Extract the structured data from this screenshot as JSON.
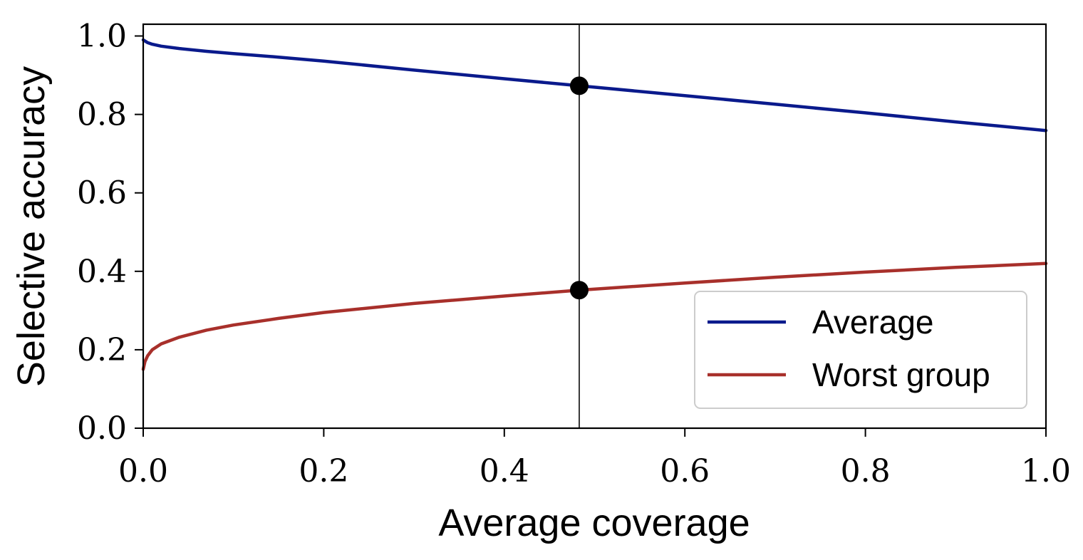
{
  "chart_data": {
    "type": "line",
    "title": "",
    "xlabel": "Average coverage",
    "ylabel": "Selective accuracy",
    "xlim": [
      0.0,
      1.0
    ],
    "ylim": [
      0.0,
      1.03
    ],
    "xticks": [
      0.0,
      0.2,
      0.4,
      0.6,
      0.8,
      1.0
    ],
    "xtick_labels": [
      "0.0",
      "0.2",
      "0.4",
      "0.6",
      "0.8",
      "1.0"
    ],
    "yticks": [
      0.0,
      0.2,
      0.4,
      0.6,
      0.8,
      1.0
    ],
    "ytick_labels": [
      "0.0",
      "0.2",
      "0.4",
      "0.6",
      "0.8",
      "1.0"
    ],
    "grid": false,
    "legend_position": "bottom-right",
    "series": [
      {
        "name": "Average",
        "color": "#0a1a8c",
        "x": [
          0.0,
          0.005,
          0.01,
          0.02,
          0.04,
          0.07,
          0.1,
          0.15,
          0.2,
          0.3,
          0.4,
          0.483,
          0.6,
          0.7,
          0.8,
          0.9,
          1.0
        ],
        "y": [
          0.99,
          0.983,
          0.979,
          0.974,
          0.968,
          0.961,
          0.955,
          0.946,
          0.936,
          0.913,
          0.891,
          0.873,
          0.848,
          0.826,
          0.804,
          0.781,
          0.759
        ]
      },
      {
        "name": "Worst group",
        "color": "#a8302b",
        "x": [
          0.0,
          0.002,
          0.005,
          0.01,
          0.02,
          0.04,
          0.07,
          0.1,
          0.15,
          0.2,
          0.3,
          0.4,
          0.483,
          0.6,
          0.7,
          0.8,
          0.9,
          1.0
        ],
        "y": [
          0.15,
          0.17,
          0.185,
          0.2,
          0.215,
          0.232,
          0.25,
          0.263,
          0.28,
          0.295,
          0.318,
          0.337,
          0.352,
          0.37,
          0.385,
          0.398,
          0.41,
          0.42
        ]
      }
    ],
    "vline": {
      "x": 0.483,
      "color": "#222222"
    },
    "markers": [
      {
        "x": 0.483,
        "y": 0.873,
        "color": "#000000"
      },
      {
        "x": 0.483,
        "y": 0.352,
        "color": "#000000"
      }
    ]
  }
}
